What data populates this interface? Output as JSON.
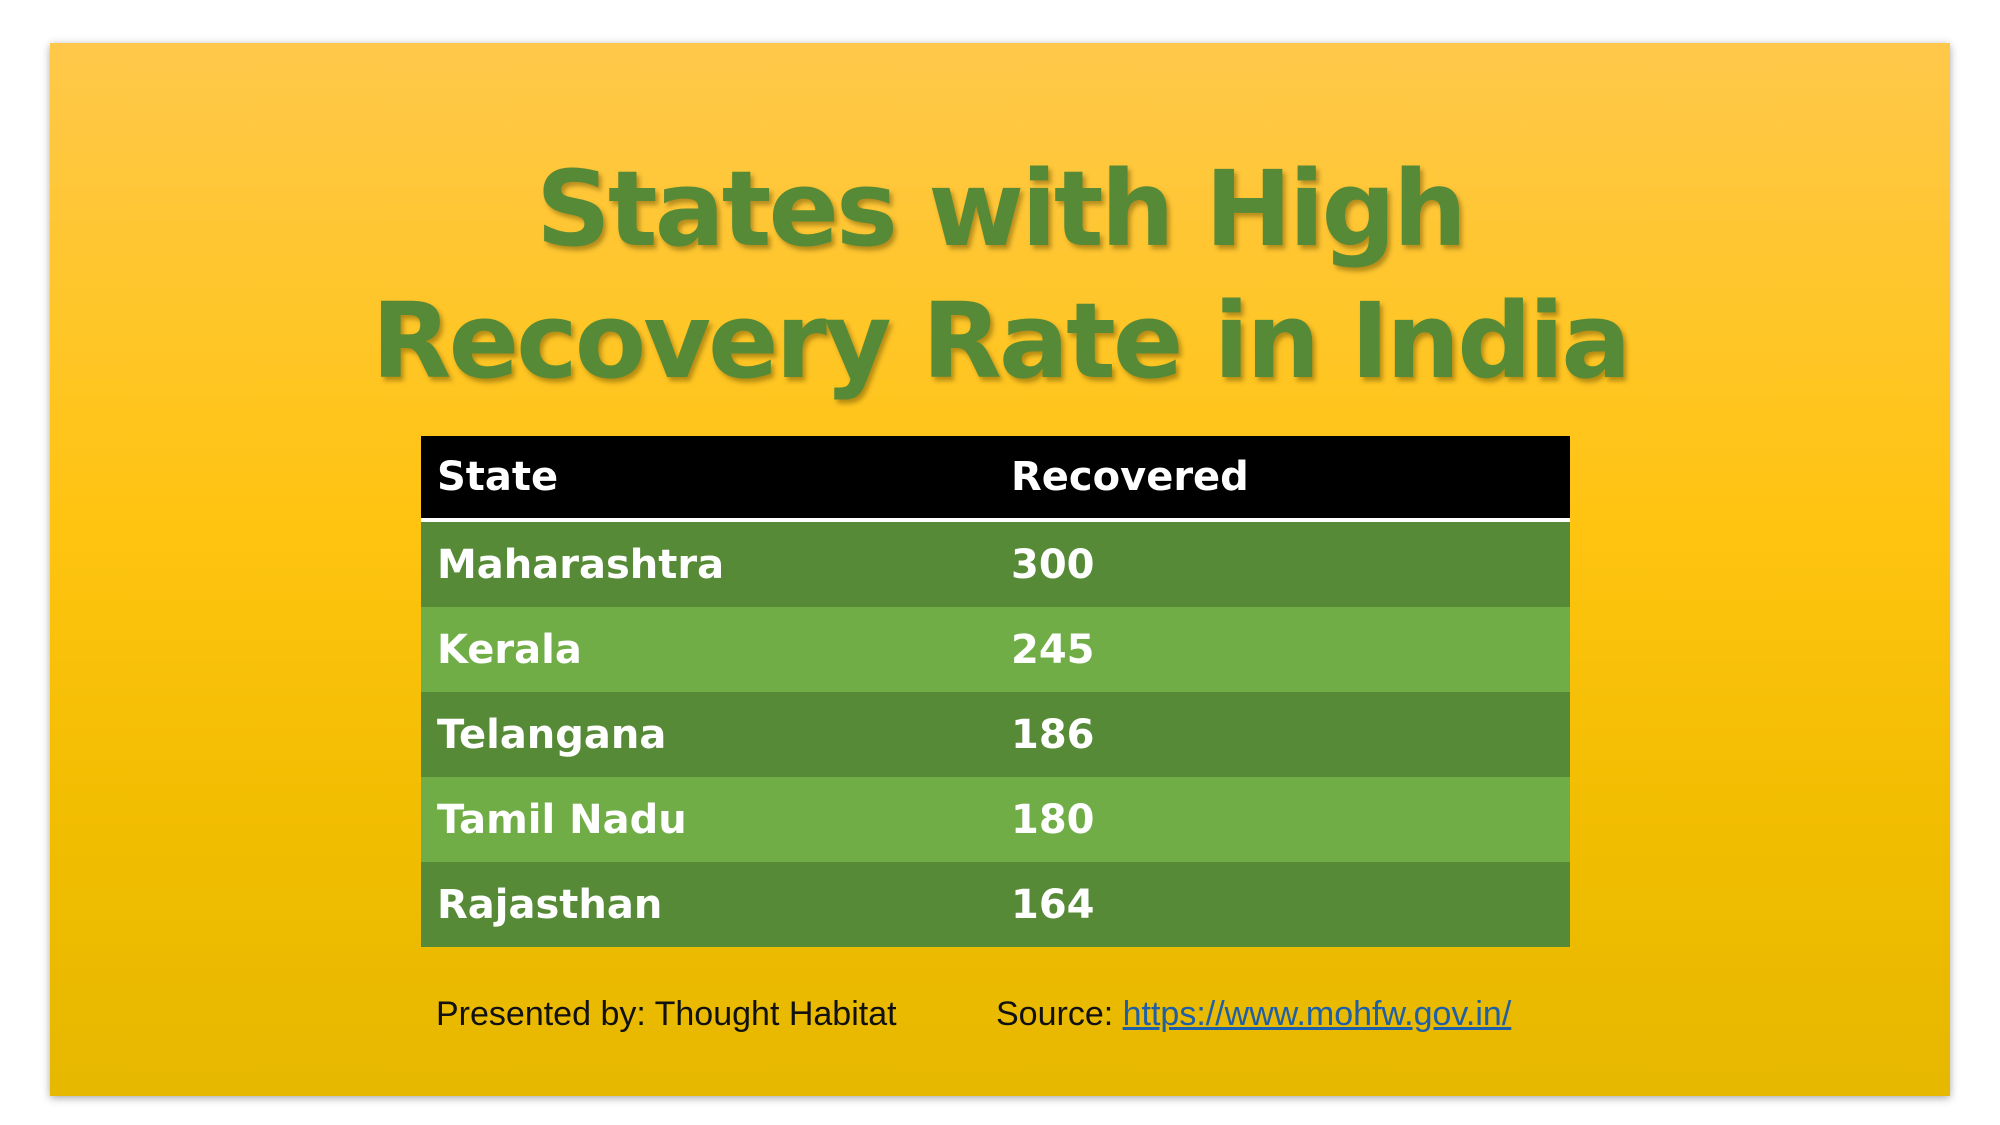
{
  "slide": {
    "title_lines": [
      "States with High",
      "Recovery Rate in India"
    ],
    "table": {
      "headers": [
        "State",
        "Recovered"
      ],
      "rows": [
        [
          "Maharashtra",
          "300"
        ],
        [
          "Kerala",
          "245"
        ],
        [
          "Telangana",
          "186"
        ],
        [
          "Tamil Nadu",
          "180"
        ],
        [
          "Rajasthan",
          "164"
        ]
      ]
    },
    "footer": {
      "presented_by": "Presented by: Thought Habitat",
      "source_label": "Source: ",
      "source_link": "https://www.mohfw.gov.in/"
    }
  },
  "colors": {
    "title": "#578a36",
    "header_bg": "#000000",
    "row_dark": "#568a36",
    "row_light": "#70ad47",
    "link": "#1f5fa8"
  }
}
